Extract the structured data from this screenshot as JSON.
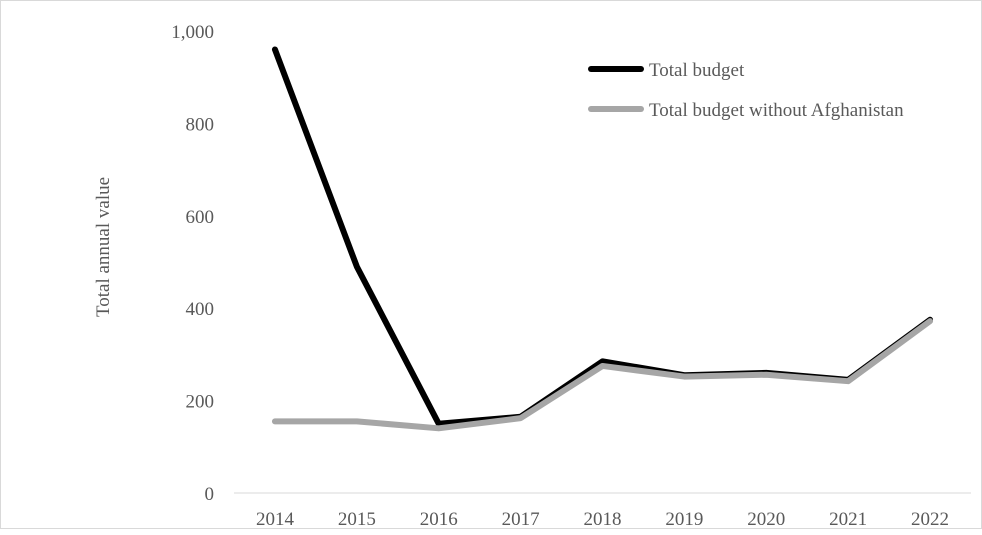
{
  "chart_data": {
    "type": "line",
    "title": "",
    "xlabel": "",
    "ylabel": "Total annual value",
    "categories": [
      "2014",
      "2015",
      "2016",
      "2017",
      "2018",
      "2019",
      "2020",
      "2021",
      "2022"
    ],
    "y_tick_labels": [
      "0",
      "200",
      "400",
      "600",
      "800",
      "1,000"
    ],
    "y_ticks": [
      0,
      200,
      400,
      600,
      800,
      1000
    ],
    "ylim": [
      0,
      1000
    ],
    "grid": false,
    "legend_position": "top-right",
    "series": [
      {
        "name": "Total budget",
        "color": "#000000",
        "values": [
          960,
          490,
          150,
          165,
          285,
          255,
          260,
          245,
          375
        ]
      },
      {
        "name": "Total budget without Afghanistan",
        "color": "#a6a6a6",
        "values": [
          155,
          155,
          140,
          162,
          275,
          252,
          256,
          242,
          372
        ]
      }
    ]
  }
}
